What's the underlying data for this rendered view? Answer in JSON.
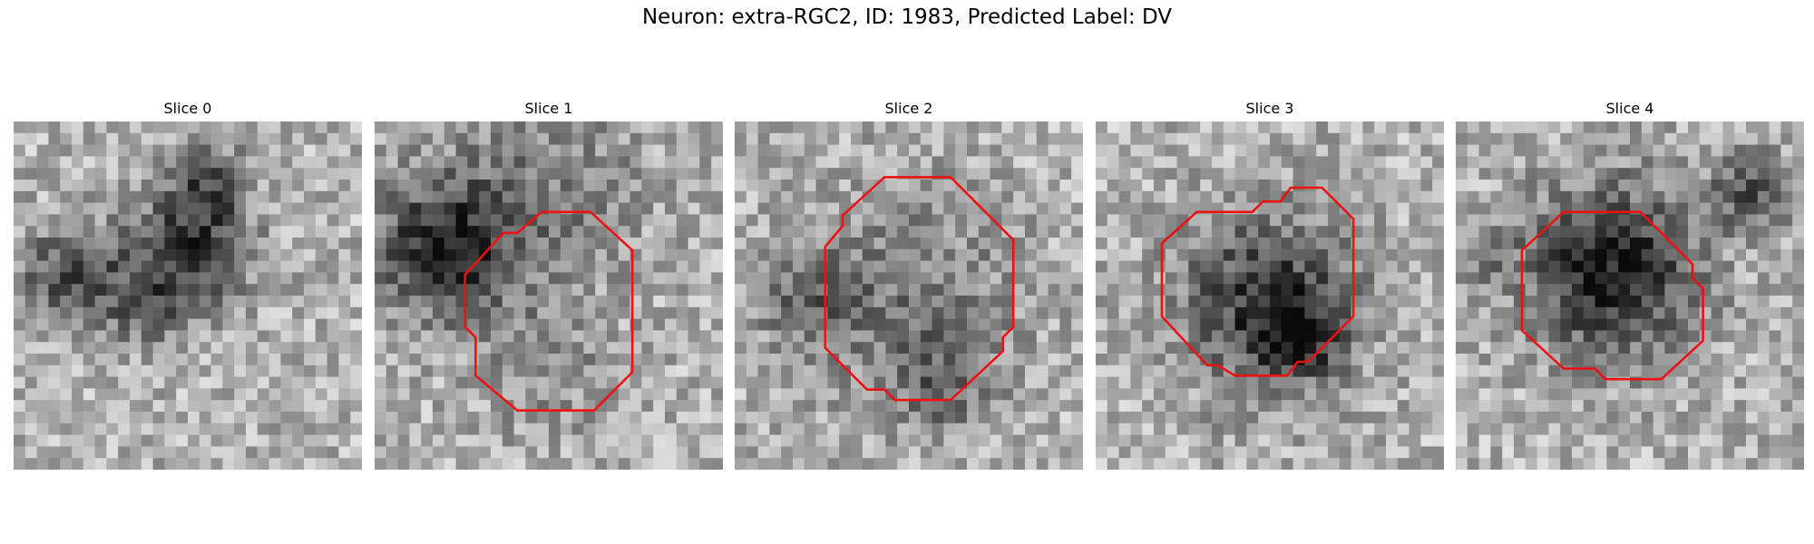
{
  "title": "Neuron: extra-RGC2, ID: 1983, Predicted Label: DV",
  "panels": [
    {
      "label": "Slice 0",
      "seed": 11,
      "blobs": [
        [
          0.17,
          0.45,
          0.1,
          0.45
        ],
        [
          0.5,
          0.38,
          0.12,
          0.5
        ],
        [
          0.56,
          0.18,
          0.08,
          0.35
        ],
        [
          0.38,
          0.55,
          0.08,
          0.2
        ]
      ],
      "contour": []
    },
    {
      "label": "Slice 1",
      "seed": 23,
      "blobs": [
        [
          0.2,
          0.36,
          0.14,
          0.55
        ],
        [
          0.5,
          0.18,
          0.2,
          0.2
        ],
        [
          0.5,
          0.7,
          0.14,
          0.15
        ]
      ],
      "contour": [
        [
          0.48,
          0.26
        ],
        [
          0.62,
          0.26
        ],
        [
          0.74,
          0.37
        ],
        [
          0.74,
          0.72
        ],
        [
          0.63,
          0.83
        ],
        [
          0.41,
          0.83
        ],
        [
          0.29,
          0.73
        ],
        [
          0.29,
          0.62
        ],
        [
          0.26,
          0.59
        ],
        [
          0.26,
          0.44
        ],
        [
          0.37,
          0.32
        ],
        [
          0.41,
          0.32
        ]
      ]
    },
    {
      "label": "Slice 2",
      "seed": 37,
      "blobs": [
        [
          0.5,
          0.5,
          0.22,
          0.22
        ],
        [
          0.2,
          0.5,
          0.1,
          0.25
        ],
        [
          0.6,
          0.75,
          0.1,
          0.25
        ]
      ],
      "contour": [
        [
          0.43,
          0.16
        ],
        [
          0.62,
          0.16
        ],
        [
          0.8,
          0.34
        ],
        [
          0.8,
          0.59
        ],
        [
          0.77,
          0.62
        ],
        [
          0.77,
          0.66
        ],
        [
          0.62,
          0.8
        ],
        [
          0.46,
          0.8
        ],
        [
          0.43,
          0.77
        ],
        [
          0.38,
          0.77
        ],
        [
          0.26,
          0.65
        ],
        [
          0.26,
          0.36
        ],
        [
          0.31,
          0.3
        ],
        [
          0.31,
          0.27
        ]
      ]
    },
    {
      "label": "Slice 3",
      "seed": 41,
      "blobs": [
        [
          0.5,
          0.52,
          0.18,
          0.5
        ],
        [
          0.58,
          0.62,
          0.08,
          0.35
        ]
      ],
      "contour": [
        [
          0.45,
          0.26
        ],
        [
          0.48,
          0.23
        ],
        [
          0.53,
          0.23
        ],
        [
          0.56,
          0.19
        ],
        [
          0.65,
          0.19
        ],
        [
          0.74,
          0.28
        ],
        [
          0.74,
          0.56
        ],
        [
          0.61,
          0.69
        ],
        [
          0.58,
          0.69
        ],
        [
          0.55,
          0.73
        ],
        [
          0.4,
          0.73
        ],
        [
          0.35,
          0.7
        ],
        [
          0.32,
          0.7
        ],
        [
          0.19,
          0.56
        ],
        [
          0.19,
          0.35
        ],
        [
          0.29,
          0.26
        ]
      ]
    },
    {
      "label": "Slice 4",
      "seed": 59,
      "blobs": [
        [
          0.45,
          0.43,
          0.17,
          0.6
        ],
        [
          0.85,
          0.2,
          0.08,
          0.35
        ],
        [
          0.1,
          0.4,
          0.06,
          0.15
        ]
      ],
      "contour": [
        [
          0.31,
          0.26
        ],
        [
          0.53,
          0.26
        ],
        [
          0.68,
          0.41
        ],
        [
          0.68,
          0.45
        ],
        [
          0.71,
          0.48
        ],
        [
          0.71,
          0.63
        ],
        [
          0.59,
          0.74
        ],
        [
          0.43,
          0.74
        ],
        [
          0.4,
          0.71
        ],
        [
          0.31,
          0.71
        ],
        [
          0.19,
          0.6
        ],
        [
          0.19,
          0.37
        ]
      ]
    }
  ]
}
